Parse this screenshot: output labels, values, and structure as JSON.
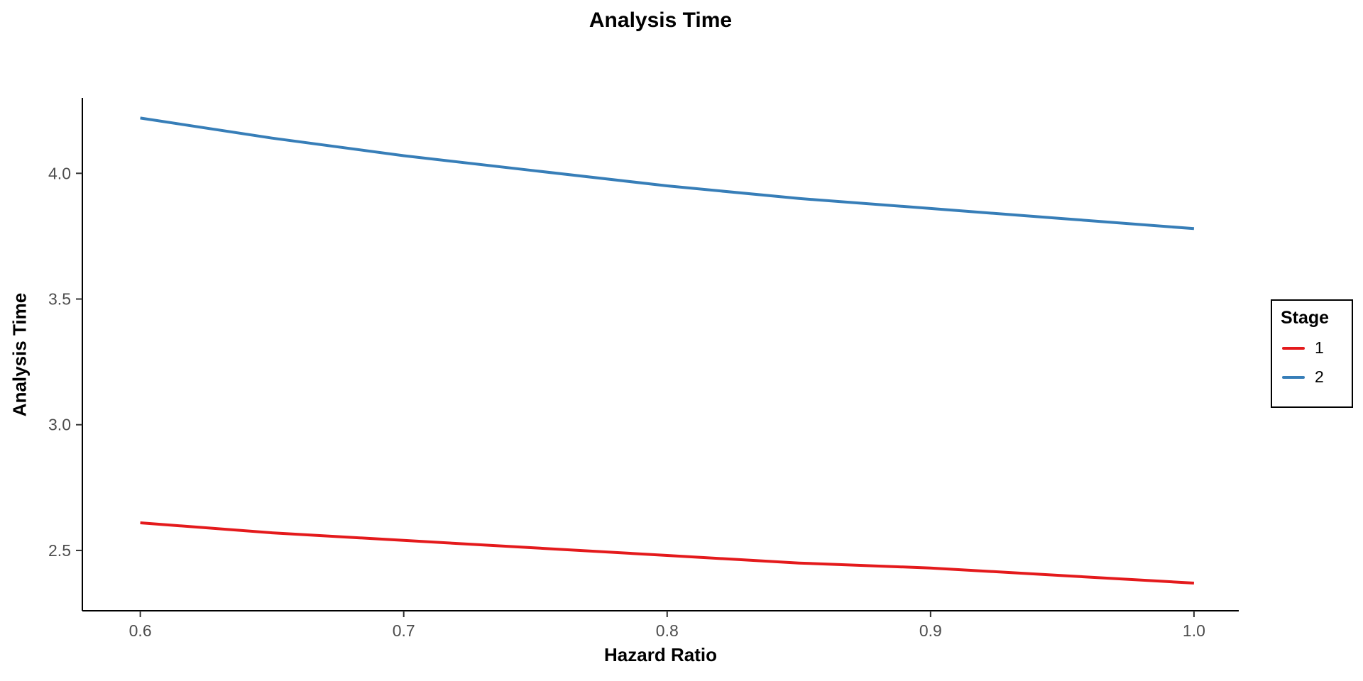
{
  "chart_data": {
    "type": "line",
    "title": "Analysis Time",
    "xlabel": "Hazard Ratio",
    "ylabel": "Analysis Time",
    "x": [
      0.6,
      0.65,
      0.7,
      0.75,
      0.8,
      0.85,
      0.9,
      0.95,
      1.0
    ],
    "series": [
      {
        "name": "1",
        "color": "#e41a1c",
        "values": [
          2.61,
          2.57,
          2.54,
          2.51,
          2.48,
          2.45,
          2.43,
          2.4,
          2.37
        ]
      },
      {
        "name": "2",
        "color": "#377eb8",
        "values": [
          4.22,
          4.14,
          4.07,
          4.01,
          3.95,
          3.9,
          3.86,
          3.82,
          3.78
        ]
      }
    ],
    "xlim": [
      0.578,
      1.017
    ],
    "ylim": [
      2.26,
      4.3
    ],
    "x_ticks": [
      0.6,
      0.7,
      0.8,
      0.9,
      1.0
    ],
    "x_tick_labels": [
      "0.6",
      "0.7",
      "0.8",
      "0.9",
      "1.0"
    ],
    "y_ticks": [
      2.5,
      3.0,
      3.5,
      4.0
    ],
    "y_tick_labels": [
      "2.5",
      "3.0",
      "3.5",
      "4.0"
    ],
    "legend": {
      "title": "Stage",
      "position": "right"
    },
    "grid": false,
    "axis_color": "#000000",
    "tick_color": "#333333",
    "tick_label_color": "#4d4d4d",
    "background_color": "#ffffff"
  }
}
